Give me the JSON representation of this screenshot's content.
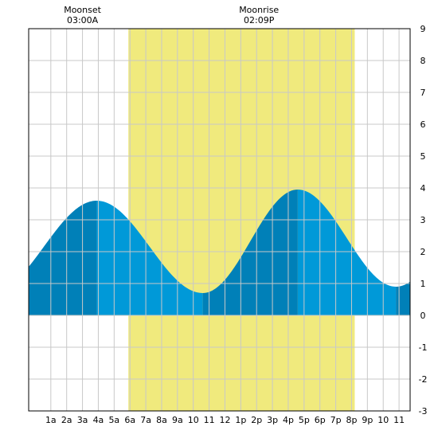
{
  "chart_data": {
    "type": "area",
    "title": "",
    "xlabel": "",
    "ylabel": "",
    "x_unit": "hour",
    "xlim": [
      -0.4,
      23.7
    ],
    "ylim": [
      -3,
      9
    ],
    "y_ticks": [
      -3,
      -2,
      -1,
      0,
      1,
      2,
      3,
      4,
      5,
      6,
      7,
      8,
      9
    ],
    "x_ticks": [
      {
        "hour": 1,
        "label": "1a"
      },
      {
        "hour": 2,
        "label": "2a"
      },
      {
        "hour": 3,
        "label": "3a"
      },
      {
        "hour": 4,
        "label": "4a"
      },
      {
        "hour": 5,
        "label": "5a"
      },
      {
        "hour": 6,
        "label": "6a"
      },
      {
        "hour": 7,
        "label": "7a"
      },
      {
        "hour": 8,
        "label": "8a"
      },
      {
        "hour": 9,
        "label": "9a"
      },
      {
        "hour": 10,
        "label": "10"
      },
      {
        "hour": 11,
        "label": "11"
      },
      {
        "hour": 12,
        "label": "12"
      },
      {
        "hour": 13,
        "label": "1p"
      },
      {
        "hour": 14,
        "label": "2p"
      },
      {
        "hour": 15,
        "label": "3p"
      },
      {
        "hour": 16,
        "label": "4p"
      },
      {
        "hour": 17,
        "label": "5p"
      },
      {
        "hour": 18,
        "label": "6p"
      },
      {
        "hour": 19,
        "label": "7p"
      },
      {
        "hour": 20,
        "label": "8p"
      },
      {
        "hour": 21,
        "label": "9p"
      },
      {
        "hour": 22,
        "label": "10"
      },
      {
        "hour": 23,
        "label": "11"
      }
    ],
    "tide_extremes": [
      {
        "hour": 3.9,
        "value": 3.6,
        "kind": "high"
      },
      {
        "hour": 10.6,
        "value": 0.7,
        "kind": "low"
      },
      {
        "hour": 16.6,
        "value": 3.95,
        "kind": "high"
      },
      {
        "hour": 22.8,
        "value": 0.9,
        "kind": "low"
      }
    ],
    "start_value": 1.4,
    "daylight": {
      "start_hour": 5.9,
      "end_hour": 20.2
    },
    "grid": true,
    "colors": {
      "daylight": "#f0ea7d",
      "night": "#ffffff",
      "tide_light": "#0099d8",
      "tide_dark": "#0080b8",
      "grid": "#c8c8c8",
      "axis": "#000000"
    }
  },
  "moon_events": [
    {
      "label": "Moonset",
      "time": "03:00A",
      "hour": 3.0
    },
    {
      "label": "Moonrise",
      "time": "02:09P",
      "hour": 14.15
    }
  ]
}
